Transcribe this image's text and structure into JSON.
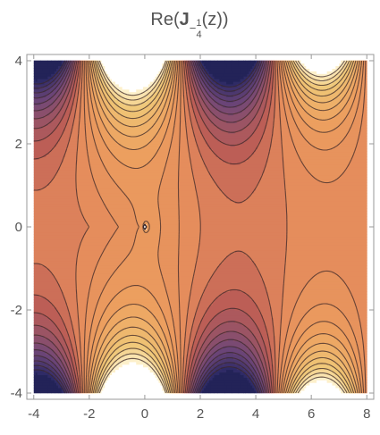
{
  "chart_data": {
    "type": "contour",
    "title_parts": [
      "Re(",
      "J",
      "−",
      "1",
      "4",
      "(z))"
    ],
    "xlim": [
      -4.25,
      8.25
    ],
    "ylim": [
      -4.15,
      4.15
    ],
    "xticks": [
      -4,
      -2,
      0,
      2,
      4,
      6,
      8
    ],
    "yticks": [
      -4,
      -2,
      0,
      2,
      4
    ]
  }
}
